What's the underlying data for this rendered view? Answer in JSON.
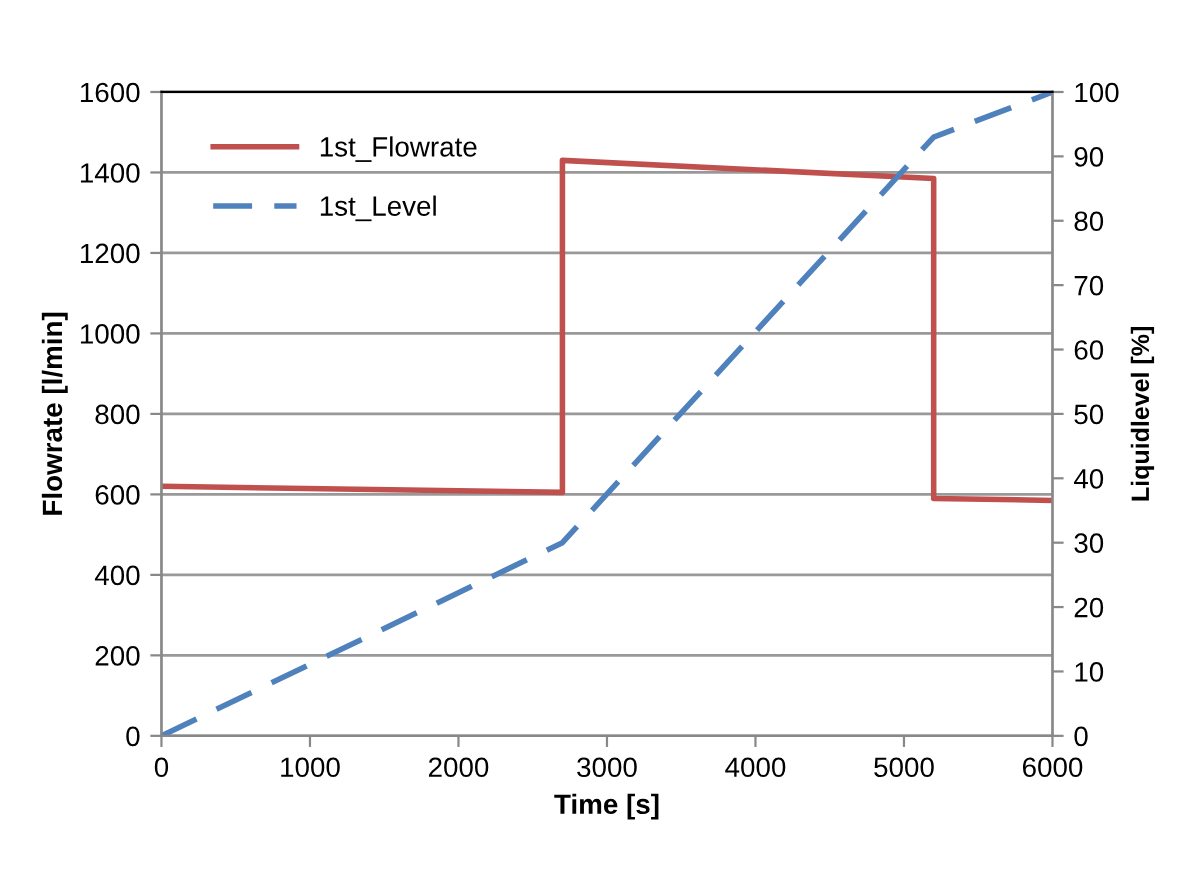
{
  "chart_data": {
    "type": "line",
    "xlabel": "Time [s]",
    "ylabel": "Flowrate [l/min]",
    "y2label": "Liquidlevel [%]",
    "xlim": [
      0,
      6000
    ],
    "xticks": [
      0,
      1000,
      2000,
      3000,
      4000,
      5000,
      6000
    ],
    "ylim": [
      0,
      1600
    ],
    "yticks": [
      0,
      200,
      400,
      600,
      800,
      1000,
      1200,
      1400,
      1600
    ],
    "y2lim": [
      0,
      100
    ],
    "y2ticks": [
      0,
      10,
      20,
      30,
      40,
      50,
      60,
      70,
      80,
      90,
      100
    ],
    "grid": "y",
    "legend": "top left",
    "series": [
      {
        "name": "1st_Flowrate",
        "color": "#c0504d",
        "line_style": "solid",
        "x": [
          0,
          2700,
          2700,
          5200,
          5200,
          6000
        ],
        "values": [
          620,
          605,
          1430,
          1385,
          590,
          585
        ]
      },
      {
        "name": "1st_Level",
        "color": "#4f81bd",
        "line_style": "dashed",
        "axis": "y2",
        "x": [
          0,
          2700,
          5200,
          6000
        ],
        "values": [
          0,
          30,
          93,
          100
        ]
      }
    ]
  }
}
